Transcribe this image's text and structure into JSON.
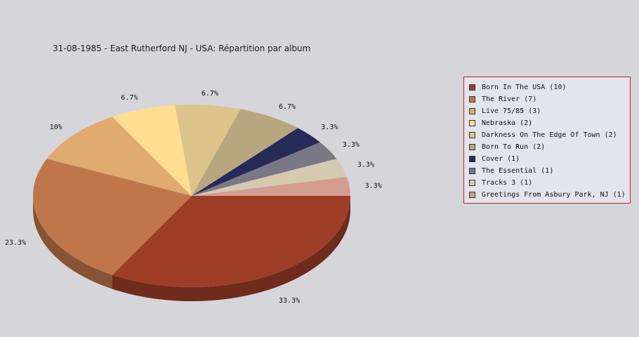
{
  "chart_data": {
    "type": "pie",
    "title": "31-08-1985 - East Rutherford NJ - USA:  Répartition par album",
    "slices": [
      {
        "label": "Born In The USA (10)",
        "value": 10,
        "pct_label": "33.3%",
        "color": "#9e3d26"
      },
      {
        "label": "The River (7)",
        "value": 7,
        "pct_label": "23.3%",
        "color": "#c0764b"
      },
      {
        "label": "Live 75/85 (3)",
        "value": 3,
        "pct_label": "10%",
        "color": "#e1aa6e"
      },
      {
        "label": "Nebraska (2)",
        "value": 2,
        "pct_label": "6.7%",
        "color": "#fedf91"
      },
      {
        "label": "Darkness On The Edge Of Town (2)",
        "value": 2,
        "pct_label": "6.7%",
        "color": "#dcc48a"
      },
      {
        "label": "Born To Run (2)",
        "value": 2,
        "pct_label": "6.7%",
        "color": "#b8a681"
      },
      {
        "label": "Cover (1)",
        "value": 1,
        "pct_label": "3.3%",
        "color": "#262a56"
      },
      {
        "label": "The Essential (1)",
        "value": 1,
        "pct_label": "3.3%",
        "color": "#7a7885"
      },
      {
        "label": "Tracks 3 (1)",
        "value": 1,
        "pct_label": "3.3%",
        "color": "#d6c9b2"
      },
      {
        "label": "Greetings From Asbury Park, NJ (1)",
        "value": 1,
        "pct_label": "3.3%",
        "color": "#d49d92"
      }
    ],
    "legend_position": "right"
  }
}
